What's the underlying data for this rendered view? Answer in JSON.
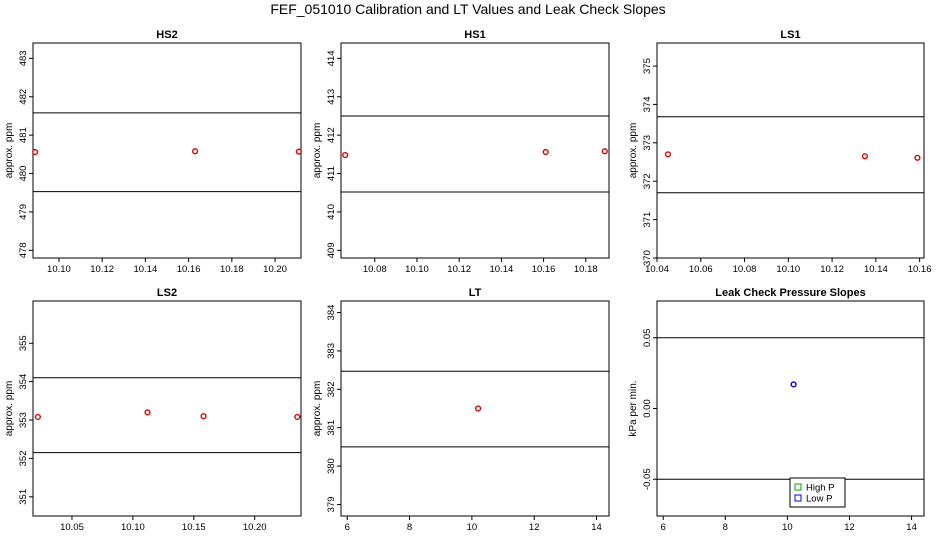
{
  "title": "FEF_051010  Calibration and LT Values and Leak Check Slopes",
  "chart_data": [
    {
      "type": "scatter",
      "title": "HS2",
      "ylabel": "approx. ppm",
      "xlim": [
        10.088,
        10.212
      ],
      "ylim": [
        477.8,
        483.4
      ],
      "xticks": [
        "10.10",
        "10.12",
        "10.14",
        "10.16",
        "10.18",
        "10.20"
      ],
      "yticks": [
        "478",
        "479",
        "480",
        "481",
        "482",
        "483"
      ],
      "hlines": [
        481.58,
        479.53
      ],
      "points": [
        {
          "x": 10.089,
          "y": 480.56
        },
        {
          "x": 10.163,
          "y": 480.58
        },
        {
          "x": 10.211,
          "y": 480.57
        }
      ],
      "color": "#dd0000"
    },
    {
      "type": "scatter",
      "title": "HS1",
      "ylabel": "approx. ppm",
      "xlim": [
        10.064,
        10.191
      ],
      "ylim": [
        408.8,
        414.4
      ],
      "xticks": [
        "10.08",
        "10.10",
        "10.12",
        "10.14",
        "10.16",
        "10.18"
      ],
      "yticks": [
        "409",
        "410",
        "411",
        "412",
        "413",
        "414"
      ],
      "hlines": [
        412.5,
        410.52
      ],
      "points": [
        {
          "x": 10.066,
          "y": 411.48
        },
        {
          "x": 10.161,
          "y": 411.56
        },
        {
          "x": 10.189,
          "y": 411.58
        }
      ],
      "color": "#dd0000"
    },
    {
      "type": "scatter",
      "title": "LS1",
      "ylabel": "approx. ppm",
      "xlim": [
        10.04,
        10.162
      ],
      "ylim": [
        370.0,
        375.6
      ],
      "xticks": [
        "10.04",
        "10.06",
        "10.08",
        "10.10",
        "10.12",
        "10.14",
        "10.16"
      ],
      "yticks": [
        "370",
        "371",
        "372",
        "373",
        "374",
        "375"
      ],
      "hlines": [
        373.68,
        371.7
      ],
      "points": [
        {
          "x": 10.045,
          "y": 372.7
        },
        {
          "x": 10.135,
          "y": 372.65
        },
        {
          "x": 10.159,
          "y": 372.61
        }
      ],
      "color": "#dd0000"
    },
    {
      "type": "scatter",
      "title": "LS2",
      "ylabel": "approx. ppm",
      "xlim": [
        10.018,
        10.238
      ],
      "ylim": [
        350.5,
        356.1
      ],
      "xticks": [
        "10.05",
        "10.10",
        "10.15",
        "10.20"
      ],
      "yticks": [
        "351",
        "352",
        "353",
        "354",
        "355"
      ],
      "hlines": [
        354.1,
        352.15
      ],
      "points": [
        {
          "x": 10.022,
          "y": 353.08
        },
        {
          "x": 10.112,
          "y": 353.2
        },
        {
          "x": 10.158,
          "y": 353.1
        },
        {
          "x": 10.235,
          "y": 353.08
        }
      ],
      "color": "#dd0000"
    },
    {
      "type": "scatter",
      "title": "LT",
      "ylabel": "approx. ppm",
      "xlim": [
        5.8,
        14.4
      ],
      "ylim": [
        378.7,
        384.3
      ],
      "xticks": [
        "6",
        "8",
        "10",
        "12",
        "14"
      ],
      "yticks": [
        "379",
        "380",
        "381",
        "382",
        "383",
        "384"
      ],
      "hlines": [
        382.47,
        380.5
      ],
      "points": [
        {
          "x": 10.2,
          "y": 381.5
        }
      ],
      "color": "#dd0000"
    },
    {
      "type": "scatter",
      "title": "Leak Check Pressure Slopes",
      "ylabel": "kPa per min.",
      "xlim": [
        5.8,
        14.4
      ],
      "ylim": [
        -0.076,
        0.076
      ],
      "xticks": [
        "6",
        "8",
        "10",
        "12",
        "14"
      ],
      "yticks": [
        "-0.05",
        "0.00",
        "0.05"
      ],
      "ytick_values": [
        -0.05,
        0.0,
        0.05
      ],
      "hlines": [
        0.05,
        -0.05
      ],
      "points": [
        {
          "x": 10.2,
          "y": 0.017
        }
      ],
      "color": "#0000dd",
      "legend": {
        "position": "bottom",
        "items": [
          {
            "label": "High P",
            "color": "#00aa00"
          },
          {
            "label": "Low P",
            "color": "#0000dd"
          }
        ]
      }
    }
  ]
}
